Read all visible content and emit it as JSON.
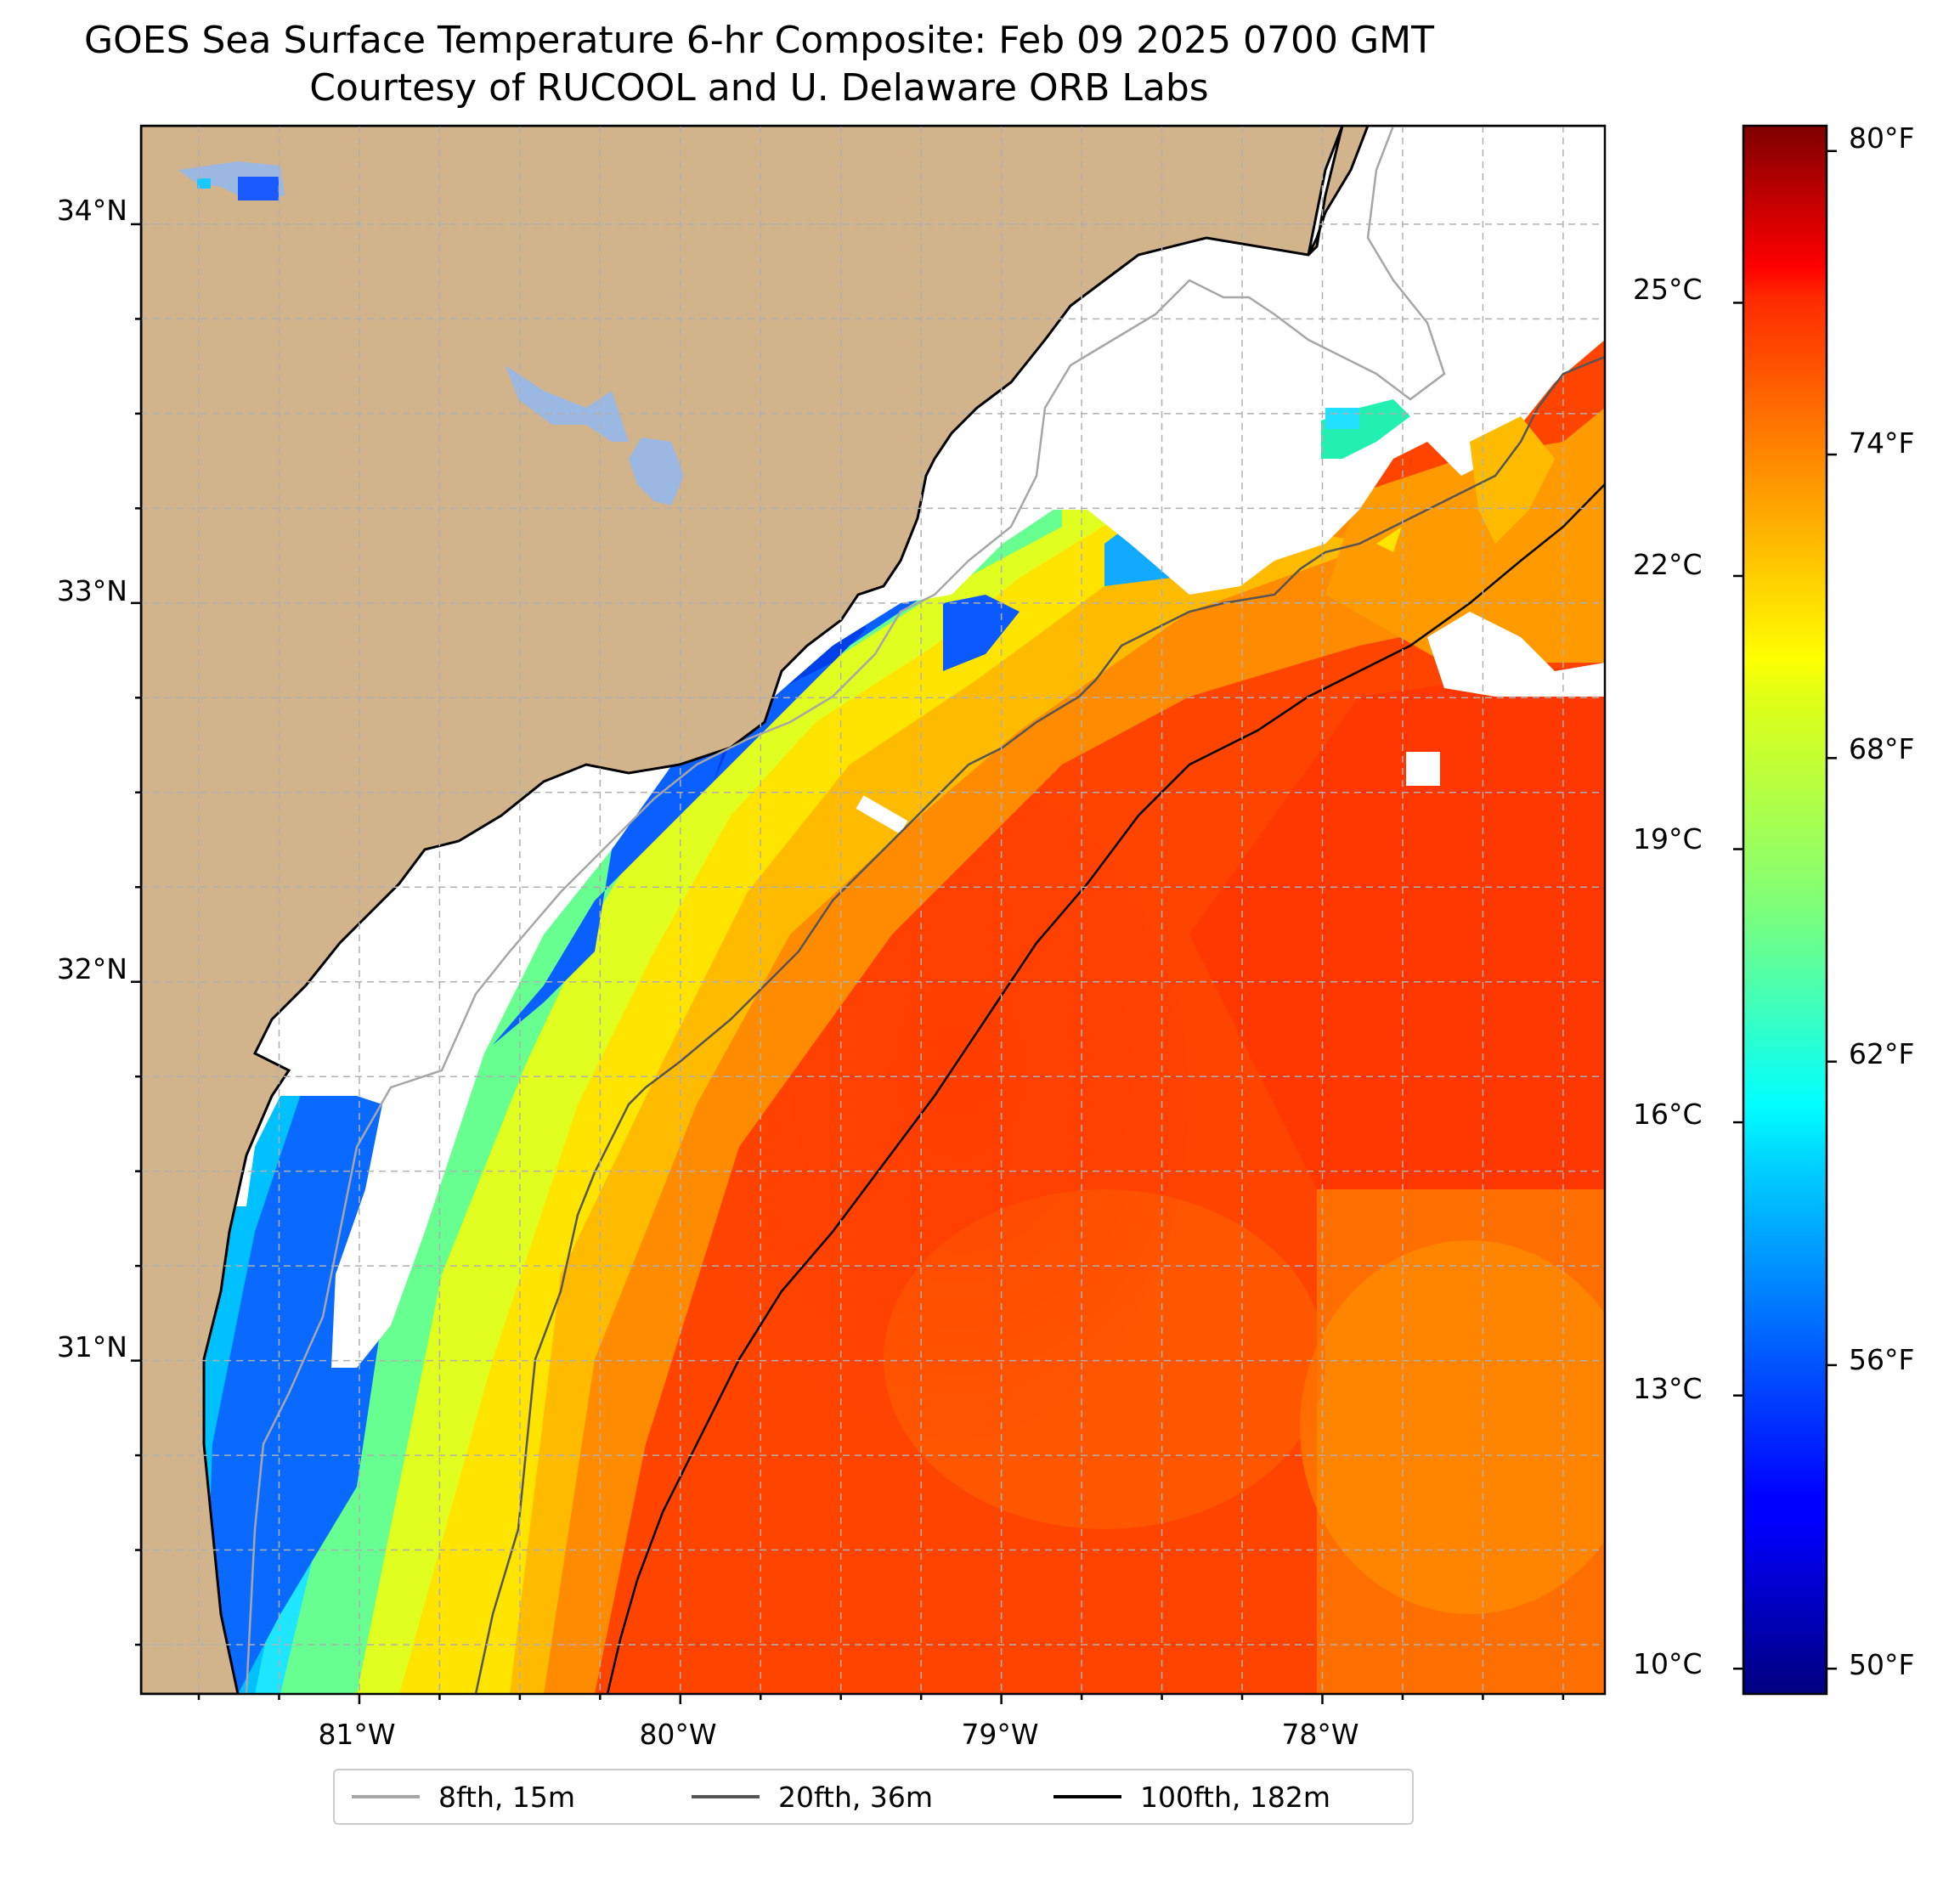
{
  "title": "GOES Sea Surface Temperature 6-hr Composite: Feb 09 2025 0700 GMT",
  "subtitle": "Courtesy of RUCOOL and U. Delaware ORB Labs",
  "map": {
    "lon_range": [
      -81.68,
      -77.12
    ],
    "lat_range": [
      30.12,
      34.26
    ],
    "lat_ticks": [
      "34°N",
      "33°N",
      "32°N",
      "31°N"
    ],
    "lon_ticks": [
      "81°W",
      "80°W",
      "79°W",
      "78°W"
    ],
    "land_color": "#d2b48c",
    "ocean_nodata_color": "#ffffff",
    "lake_color": "#9bb8e2",
    "grid": true
  },
  "colorbar": {
    "colormap": "jet",
    "range_f": [
      49.5,
      80.5
    ],
    "celsius_labels": [
      "25°C",
      "22°C",
      "19°C",
      "16°C",
      "13°C",
      "10°C"
    ],
    "fahrenheit_labels": [
      "80°F",
      "74°F",
      "68°F",
      "62°F",
      "56°F",
      "50°F"
    ]
  },
  "legend": [
    {
      "label": "8fth, 15m",
      "color": "#a6a6a6"
    },
    {
      "label": "20fth, 36m",
      "color": "#555555"
    },
    {
      "label": "100fth, 182m",
      "color": "#000000"
    }
  ]
}
